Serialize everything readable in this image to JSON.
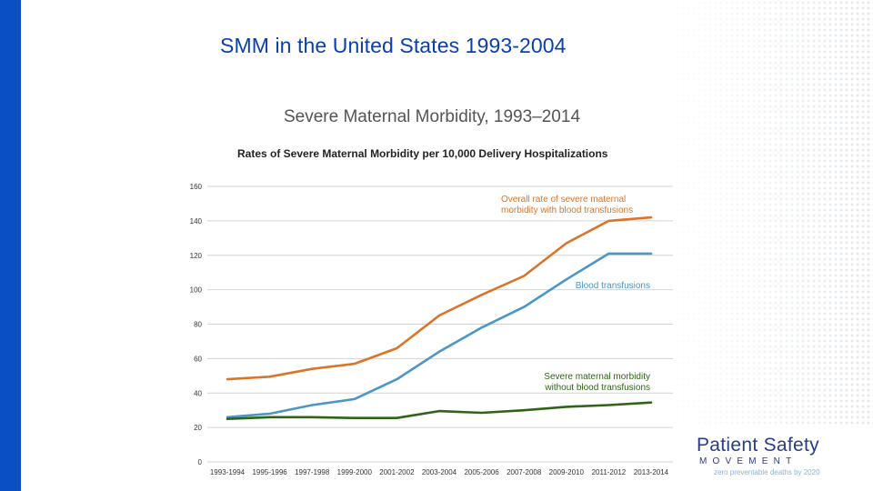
{
  "slide": {
    "title": "SMM in the United States 1993-2004"
  },
  "chart_heading": "Severe Maternal Morbidity, 1993–2014",
  "chart_subheading": "Rates of Severe Maternal Morbidity per 10,000 Delivery Hospitalizations",
  "logo": {
    "name": "Patient Safety",
    "sub": "MOVEMENT",
    "tagline": "zero preventable deaths by 2020"
  },
  "colors": {
    "title": "#0a3fae",
    "left_bar": "#0a4fc4",
    "overall": "#d8752a",
    "transfusion": "#4c96c4",
    "without": "#2f6418"
  },
  "chart_data": {
    "type": "line",
    "categories": [
      "1993-1994",
      "1995-1996",
      "1997-1998",
      "1999-2000",
      "2001-2002",
      "2003-2004",
      "2005-2006",
      "2007-2008",
      "2009-2010",
      "2011-2012",
      "2013-2014"
    ],
    "ylim": [
      0,
      160
    ],
    "yticks": [
      0,
      20,
      40,
      60,
      80,
      100,
      120,
      140,
      160
    ],
    "grid": true,
    "series": [
      {
        "name": "Overall rate of severe maternal morbidity with blood transfusions",
        "label_lines": [
          "Overall rate of severe maternal",
          "morbidity with blood transfusions"
        ],
        "color": "#d8752a",
        "values": [
          48,
          49.5,
          54,
          57,
          66,
          85,
          97,
          108,
          127,
          140,
          142
        ]
      },
      {
        "name": "Blood transfusions",
        "label_lines": [
          "Blood transfusions"
        ],
        "color": "#4c96c4",
        "values": [
          26,
          28,
          33,
          36.5,
          48,
          64,
          78,
          90,
          106,
          121,
          121
        ]
      },
      {
        "name": "Severe maternal morbidity without blood transfusions",
        "label_lines": [
          "Severe maternal morbidity",
          "without blood transfusions"
        ],
        "color": "#2f6418",
        "values": [
          25,
          26,
          26,
          25.5,
          25.5,
          29.5,
          28.5,
          30,
          32,
          33,
          34.5
        ]
      }
    ]
  }
}
